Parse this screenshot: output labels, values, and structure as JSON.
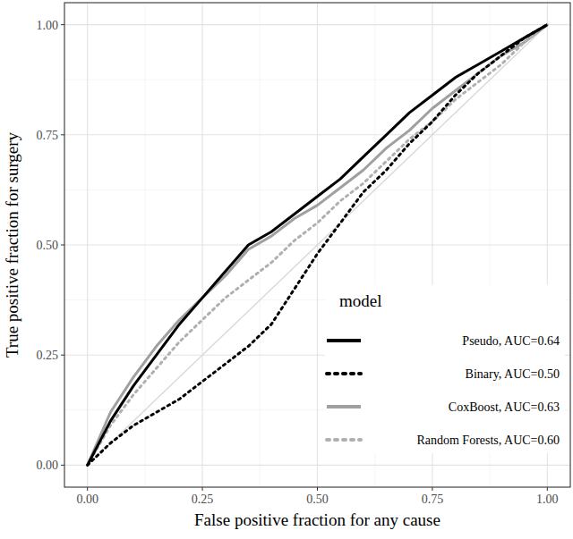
{
  "chart_data": {
    "type": "line",
    "x_label": "False positive fraction for any cause",
    "y_label": "True positive fraction for surgery",
    "legend_title": "model",
    "legend": "bottom-right",
    "grid": true,
    "xlim": [
      -0.05,
      1.05
    ],
    "ylim": [
      -0.05,
      1.05
    ],
    "xticks": [
      {
        "value": 0,
        "label": "0.00"
      },
      {
        "value": 0.25,
        "label": "0.25"
      },
      {
        "value": 0.5,
        "label": "0.50"
      },
      {
        "value": 0.75,
        "label": "0.75"
      },
      {
        "value": 1,
        "label": "1.00"
      }
    ],
    "yticks": [
      {
        "value": 0,
        "label": "0.00"
      },
      {
        "value": 0.25,
        "label": "0.25"
      },
      {
        "value": 0.5,
        "label": "0.50"
      },
      {
        "value": 0.75,
        "label": "0.75"
      },
      {
        "value": 1,
        "label": "1.00"
      }
    ],
    "reference_line": {
      "x": [
        0,
        1
      ],
      "values": [
        0,
        1
      ],
      "color": "#d9d9d9"
    },
    "x": [
      0,
      0.05,
      0.1,
      0.15,
      0.2,
      0.25,
      0.3,
      0.35,
      0.4,
      0.45,
      0.5,
      0.55,
      0.6,
      0.65,
      0.7,
      0.75,
      0.8,
      0.85,
      0.9,
      0.95,
      1
    ],
    "series": [
      {
        "name": "Pseudo, AUC=0.64",
        "color": "#000000",
        "line_style": "solid",
        "values": [
          0,
          0.1,
          0.18,
          0.25,
          0.32,
          0.38,
          0.44,
          0.5,
          0.53,
          0.57,
          0.61,
          0.65,
          0.7,
          0.75,
          0.8,
          0.84,
          0.88,
          0.91,
          0.94,
          0.97,
          1
        ]
      },
      {
        "name": "Binary, AUC=0.50",
        "color": "#000000",
        "line_style": "dotted",
        "values": [
          0,
          0.05,
          0.09,
          0.12,
          0.15,
          0.19,
          0.23,
          0.27,
          0.32,
          0.4,
          0.48,
          0.55,
          0.62,
          0.67,
          0.73,
          0.78,
          0.84,
          0.89,
          0.93,
          0.97,
          1
        ]
      },
      {
        "name": "CoxBoost, AUC=0.63",
        "color": "#a0a0a0",
        "line_style": "solid",
        "values": [
          0,
          0.12,
          0.2,
          0.27,
          0.33,
          0.38,
          0.43,
          0.49,
          0.52,
          0.56,
          0.59,
          0.63,
          0.67,
          0.72,
          0.76,
          0.81,
          0.85,
          0.89,
          0.93,
          0.96,
          1
        ]
      },
      {
        "name": "Random Forests, AUC=0.60",
        "color": "#b0b0b0",
        "line_style": "dotted",
        "values": [
          0,
          0.09,
          0.16,
          0.22,
          0.28,
          0.33,
          0.38,
          0.42,
          0.46,
          0.51,
          0.55,
          0.6,
          0.64,
          0.69,
          0.74,
          0.78,
          0.83,
          0.87,
          0.91,
          0.96,
          1
        ]
      }
    ]
  }
}
